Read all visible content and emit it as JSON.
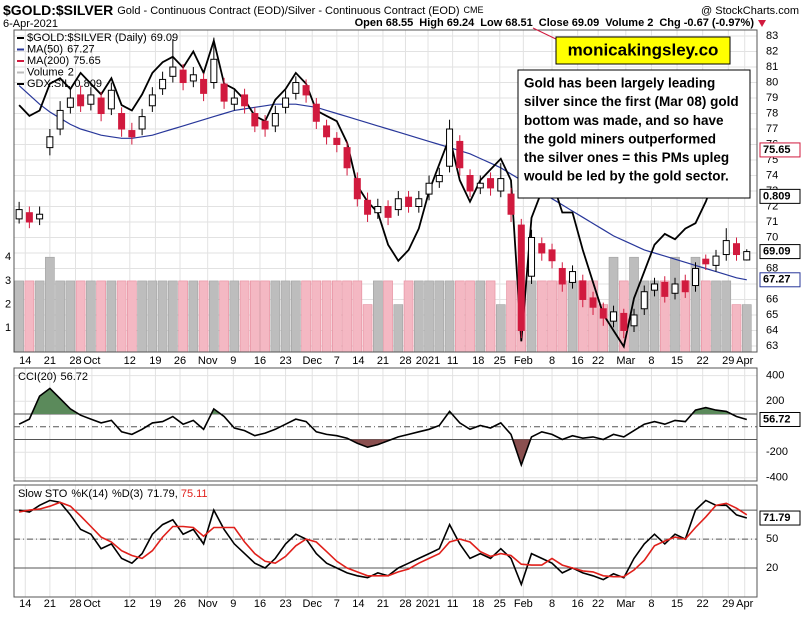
{
  "chart_data": [
    {
      "type": "candlestick",
      "title": "$GOLD:$SILVER",
      "subtitle": "Gold - Continuous Contract (EOD)/Silver - Continuous Contract (EOD)",
      "exchange": "CME",
      "source": "@ StockCharts.com",
      "date": "6-Apr-2021",
      "fields": [
        "Open",
        "High",
        "Low",
        "Close",
        "Volume",
        "Chg"
      ],
      "change": -0.67,
      "change_pct_label": "(-0.97%)",
      "name": "$GOLD:$SILVER (Daily)",
      "up_color": "#000000",
      "down_color": "#d11a3e",
      "grid": true,
      "xlim": [
        -0.5,
        72
      ],
      "xticks": [
        {
          "value": 0.6,
          "label": "14"
        },
        {
          "value": 3.0,
          "label": "21"
        },
        {
          "value": 5.5,
          "label": "28"
        },
        {
          "value": 7.1,
          "label": "Oct"
        },
        {
          "value": 10.8,
          "label": "12"
        },
        {
          "value": 13.3,
          "label": "19"
        },
        {
          "value": 15.7,
          "label": "26"
        },
        {
          "value": 18.4,
          "label": "Nov"
        },
        {
          "value": 20.9,
          "label": "9"
        },
        {
          "value": 23.5,
          "label": "16"
        },
        {
          "value": 26.0,
          "label": "23"
        },
        {
          "value": 28.6,
          "label": "Dec"
        },
        {
          "value": 31.0,
          "label": "7"
        },
        {
          "value": 33.1,
          "label": "14"
        },
        {
          "value": 35.5,
          "label": "21"
        },
        {
          "value": 37.7,
          "label": "28"
        },
        {
          "value": 39.9,
          "label": "2021"
        },
        {
          "value": 42.3,
          "label": "11"
        },
        {
          "value": 44.8,
          "label": "18"
        },
        {
          "value": 46.9,
          "label": "25"
        },
        {
          "value": 49.2,
          "label": "Feb"
        },
        {
          "value": 52.0,
          "label": "8"
        },
        {
          "value": 54.5,
          "label": "16"
        },
        {
          "value": 56.5,
          "label": "22"
        },
        {
          "value": 59.2,
          "label": "Mar"
        },
        {
          "value": 61.7,
          "label": "8"
        },
        {
          "value": 64.2,
          "label": "15"
        },
        {
          "value": 66.7,
          "label": "22"
        },
        {
          "value": 69.2,
          "label": "29"
        },
        {
          "value": 70.8,
          "label": "Apr"
        }
      ],
      "ylim": [
        62.61,
        83.39
      ],
      "yticks": [
        63,
        64,
        65,
        66,
        67,
        68,
        69,
        70,
        71,
        72,
        73,
        74,
        75,
        76,
        77,
        78,
        79,
        80,
        81,
        82,
        83
      ],
      "open": [
        71.2,
        71.6,
        71.2,
        75.8,
        77.0,
        78.4,
        79.2,
        78.6,
        79.0,
        78.3,
        78.0,
        76.9,
        77.0,
        78.5,
        79.6,
        80.4,
        80.8,
        80.1,
        80.2,
        80.0,
        79.9,
        78.6,
        79.2,
        78.0,
        77.5,
        77.2,
        78.4,
        79.3,
        79.8,
        78.6,
        77.2,
        76.4,
        75.8,
        73.8,
        72.4,
        71.6,
        72.0,
        71.8,
        72.6,
        72.0,
        72.8,
        73.6,
        74.6,
        76.2,
        74.0,
        73.2,
        73.8,
        73.0,
        72.8,
        70.8,
        67.5,
        69.6,
        69.2,
        68.0,
        67.1,
        67.2,
        66.1,
        65.4,
        64.6,
        65.1,
        64.3,
        65.4,
        66.6,
        67.1,
        66.4,
        67.2,
        66.9,
        68.6,
        68.2,
        68.9,
        69.6,
        68.55
      ],
      "high": [
        72.3,
        72.0,
        72.0,
        77.0,
        78.8,
        79.6,
        79.8,
        79.7,
        79.4,
        80.0,
        78.4,
        77.4,
        78.3,
        79.7,
        80.7,
        82.8,
        81.2,
        81.0,
        80.6,
        82.9,
        80.3,
        79.5,
        79.6,
        78.4,
        77.9,
        78.5,
        79.5,
        80.4,
        80.2,
        79.0,
        77.6,
        76.8,
        76.2,
        74.2,
        72.9,
        72.5,
        72.4,
        73.0,
        73.0,
        73.0,
        74.0,
        74.5,
        77.6,
        76.6,
        74.4,
        74.0,
        74.2,
        74.8,
        73.2,
        71.2,
        70.5,
        70.0,
        69.6,
        68.4,
        68.2,
        67.6,
        66.5,
        65.8,
        65.6,
        65.4,
        65.4,
        66.9,
        67.4,
        67.5,
        67.4,
        67.6,
        68.4,
        68.9,
        69.2,
        70.6,
        70.0,
        69.24
      ],
      "low": [
        70.9,
        70.6,
        70.8,
        75.3,
        76.6,
        78.0,
        78.1,
        78.2,
        77.5,
        77.9,
        76.5,
        76.0,
        76.6,
        78.1,
        79.2,
        80.0,
        79.5,
        79.7,
        78.8,
        79.6,
        78.3,
        78.2,
        78.0,
        76.8,
        76.5,
        76.8,
        78.0,
        78.9,
        78.7,
        77.0,
        76.0,
        75.5,
        74.0,
        72.0,
        71.0,
        71.2,
        70.8,
        71.4,
        71.6,
        71.6,
        72.4,
        73.2,
        74.2,
        74.0,
        72.6,
        72.8,
        72.7,
        72.6,
        71.0,
        63.5,
        67.0,
        68.5,
        68.0,
        66.5,
        66.7,
        65.5,
        65.0,
        64.3,
        64.2,
        63.5,
        63.9,
        65.0,
        66.2,
        65.8,
        66.0,
        66.1,
        66.5,
        67.9,
        67.8,
        68.5,
        68.5,
        68.51
      ],
      "close": [
        71.8,
        71.0,
        71.5,
        76.5,
        78.2,
        79.0,
        78.5,
        79.2,
        78.0,
        79.5,
        77.0,
        76.5,
        77.8,
        79.2,
        80.2,
        81.0,
        80.0,
        80.5,
        79.3,
        81.5,
        78.8,
        79.0,
        78.5,
        77.2,
        77.0,
        78.0,
        79.0,
        80.0,
        79.2,
        77.5,
        76.5,
        76.0,
        74.5,
        72.5,
        71.5,
        72.0,
        71.3,
        72.5,
        72.0,
        72.5,
        73.5,
        74.0,
        77.0,
        74.5,
        73.0,
        73.5,
        73.2,
        73.8,
        71.5,
        64.0,
        70.0,
        69.0,
        68.5,
        67.0,
        67.8,
        66.0,
        65.5,
        64.8,
        65.2,
        64.0,
        65.0,
        66.5,
        67.0,
        66.2,
        67.0,
        66.5,
        68.0,
        68.3,
        68.8,
        69.8,
        68.9,
        69.09
      ],
      "volume": {
        "name": "Volume",
        "lim": [
          0,
          13.59
        ],
        "ticks": [
          1,
          2,
          3,
          4
        ],
        "up_color": "#bdbdbd",
        "down_color": "#f4b8c3",
        "values": [
          3,
          3,
          3,
          4,
          3,
          3,
          3,
          3,
          3,
          3,
          3,
          3,
          3,
          3,
          3,
          3,
          3,
          3,
          3,
          3,
          3,
          3,
          3,
          3,
          3,
          3,
          3,
          3,
          3,
          3,
          3,
          3,
          3,
          3,
          2,
          3,
          3,
          2,
          3,
          3,
          3,
          3,
          3,
          3,
          3,
          3,
          3,
          2,
          3,
          3,
          3,
          3,
          3,
          3,
          3,
          3,
          3,
          2,
          4,
          3,
          4,
          3,
          3,
          3,
          4,
          3,
          4,
          3,
          3,
          3,
          2,
          2
        ]
      },
      "series": [
        {
          "name": "MA(50)",
          "color": "#28379a",
          "values": [
            79.8,
            79.2,
            78.6,
            78.1,
            77.7,
            77.3,
            77.0,
            76.8,
            76.6,
            76.5,
            76.4,
            76.4,
            76.5,
            76.6,
            76.8,
            77.0,
            77.2,
            77.4,
            77.6,
            77.8,
            78.0,
            78.2,
            78.3,
            78.4,
            78.5,
            78.6,
            78.6,
            78.6,
            78.5,
            78.4,
            78.2,
            78.0,
            77.8,
            77.6,
            77.4,
            77.2,
            77.0,
            76.8,
            76.6,
            76.4,
            76.2,
            76.0,
            75.8,
            75.6,
            75.4,
            75.1,
            74.8,
            74.5,
            74.1,
            73.7,
            73.3,
            72.9,
            72.5,
            72.1,
            71.7,
            71.3,
            70.9,
            70.5,
            70.1,
            69.8,
            69.5,
            69.2,
            69.0,
            68.8,
            68.6,
            68.4,
            68.2,
            68.0,
            67.8,
            67.6,
            67.4,
            67.27
          ]
        },
        {
          "name": "GDX:SIL",
          "color": "#000000",
          "axis": "y2",
          "values": [
            0.826,
            0.824,
            0.825,
            0.83,
            0.831,
            0.829,
            0.832,
            0.83,
            0.828,
            0.831,
            0.826,
            0.825,
            0.828,
            0.832,
            0.834,
            0.835,
            0.833,
            0.836,
            0.832,
            0.838,
            0.83,
            0.829,
            0.827,
            0.824,
            0.823,
            0.827,
            0.829,
            0.832,
            0.83,
            0.825,
            0.824,
            0.823,
            0.819,
            0.811,
            0.808,
            0.806,
            0.8,
            0.797,
            0.799,
            0.803,
            0.81,
            0.815,
            0.82,
            0.812,
            0.808,
            0.812,
            0.814,
            0.816,
            0.812,
            0.782,
            0.805,
            0.81,
            0.812,
            0.806,
            0.806,
            0.799,
            0.793,
            0.787,
            0.784,
            0.781,
            0.79,
            0.795,
            0.8,
            0.802,
            0.801,
            0.803,
            0.804,
            0.808,
            0.813,
            0.816,
            0.813,
            0.809
          ]
        }
      ],
      "ma200": {
        "name": "MA(200)",
        "color": "#d11a3e",
        "value": 75.65
      },
      "y2lim": [
        0.78,
        0.84
      ],
      "annotation": {
        "brand": "monicakingsley.co",
        "lines": [
          "Gold has been largely leading",
          "silver since the first (Mar 08) gold",
          "bottom was made, and so have",
          "the gold miners outperformed",
          "the silver ones = this PMs upleg",
          "would be led by the gold sector."
        ]
      }
    },
    {
      "type": "line",
      "ylim": [
        -425,
        460
      ],
      "yticks": [
        400,
        200,
        -200,
        -400
      ],
      "guides": [
        100,
        0,
        -100
      ],
      "guide_styles": [
        "solid",
        "dashdot",
        "solid"
      ],
      "fill_up": "#5b8a5b",
      "fill_down": "#8a4f4f",
      "series": [
        {
          "name": "CCI(20)",
          "color": "#000000",
          "values": [
            20,
            60,
            240,
            300,
            220,
            140,
            90,
            60,
            30,
            50,
            -40,
            -60,
            -20,
            30,
            40,
            80,
            20,
            50,
            -20,
            140,
            80,
            -10,
            -30,
            -70,
            -50,
            -20,
            20,
            60,
            40,
            -40,
            -60,
            -70,
            -90,
            -130,
            -160,
            -140,
            -110,
            -80,
            -60,
            -40,
            -20,
            10,
            120,
            30,
            -20,
            10,
            -10,
            30,
            -60,
            -300,
            -80,
            -40,
            -60,
            -100,
            -70,
            -90,
            -80,
            -100,
            -60,
            -80,
            -30,
            20,
            40,
            20,
            50,
            40,
            130,
            150,
            130,
            120,
            80,
            56.72
          ]
        }
      ]
    },
    {
      "type": "line",
      "title": "Slow STO",
      "separator": ", ",
      "ylim": [
        -10,
        106
      ],
      "yticks": [
        50,
        20
      ],
      "guides": [
        80,
        50,
        20
      ],
      "guide_styles": [
        "solid",
        "dashdot",
        "solid"
      ],
      "series": [
        {
          "name": "%K(14)",
          "color": "#000000",
          "values": [
            80,
            78,
            85,
            90,
            88,
            75,
            60,
            55,
            40,
            45,
            30,
            25,
            35,
            55,
            65,
            70,
            55,
            60,
            45,
            80,
            60,
            45,
            35,
            25,
            20,
            30,
            45,
            55,
            50,
            35,
            25,
            20,
            15,
            12,
            10,
            15,
            12,
            20,
            25,
            30,
            35,
            40,
            65,
            45,
            30,
            35,
            30,
            40,
            30,
            3,
            35,
            30,
            25,
            15,
            20,
            15,
            12,
            8,
            14,
            10,
            30,
            45,
            55,
            45,
            55,
            50,
            80,
            90,
            85,
            85,
            75,
            71.79
          ]
        },
        {
          "name": "%D(3)",
          "color": "#e0201b",
          "values": [
            78,
            80,
            81,
            84,
            88,
            84,
            74,
            63,
            52,
            47,
            38,
            33,
            30,
            38,
            52,
            63,
            63,
            62,
            53,
            62,
            62,
            62,
            47,
            35,
            27,
            25,
            32,
            43,
            50,
            47,
            37,
            27,
            20,
            16,
            12,
            12,
            12,
            16,
            19,
            25,
            30,
            35,
            47,
            50,
            47,
            37,
            32,
            35,
            33,
            24,
            23,
            23,
            30,
            23,
            20,
            17,
            16,
            12,
            11,
            11,
            18,
            28,
            43,
            48,
            52,
            50,
            62,
            73,
            85,
            87,
            82,
            75.11
          ]
        }
      ]
    }
  ]
}
